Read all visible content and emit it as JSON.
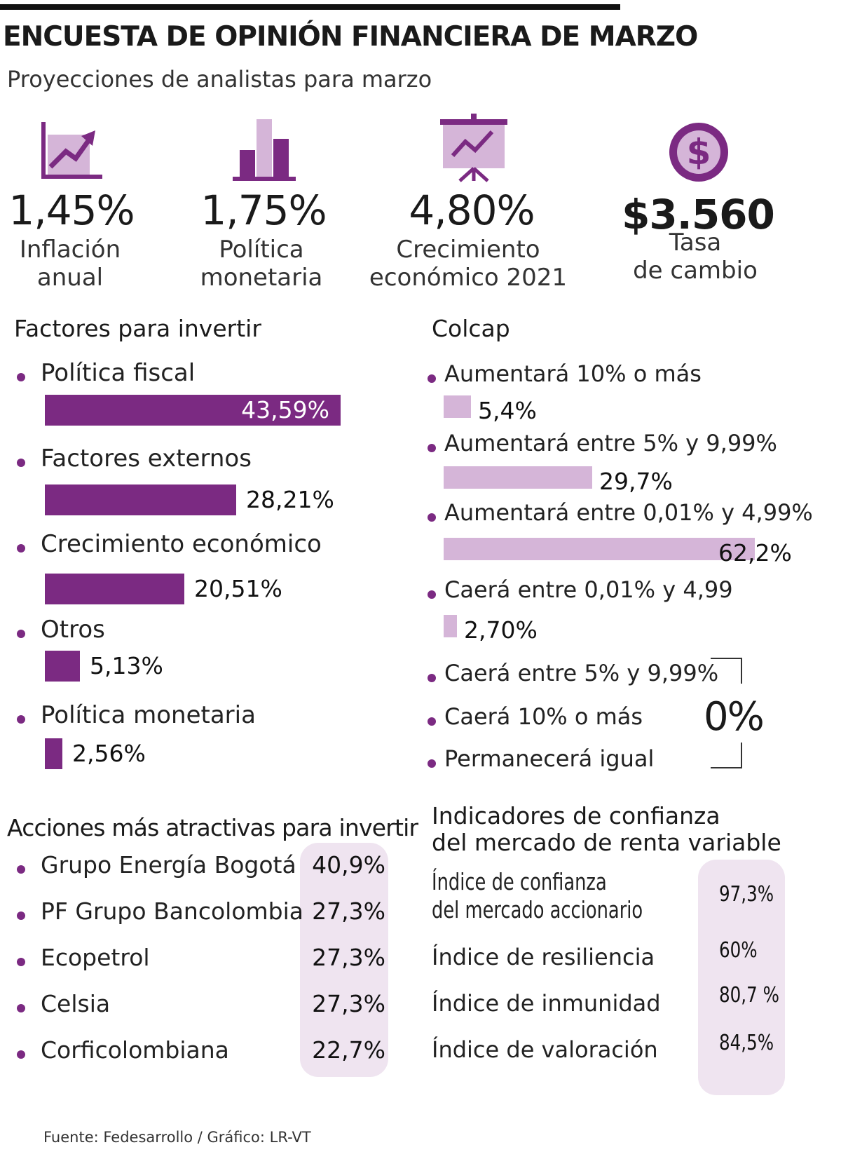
{
  "title": "ENCUESTA DE OPINIÓN FINANCIERA DE MARZO",
  "subtitle": "Proyecciones de analistas para marzo",
  "kpis": [
    {
      "value": "1,45%",
      "label1": "Inflación",
      "label2": "anual",
      "icon": "chart-growth-icon"
    },
    {
      "value": "1,75%",
      "label1": "Política",
      "label2": "monetaria",
      "icon": "bar-chart-icon"
    },
    {
      "value": "4,80%",
      "label1": "Crecimiento",
      "label2": "económico 2021",
      "icon": "presentation-board-icon"
    },
    {
      "value": "$3.560",
      "label1": "Tasa",
      "label2": "de cambio",
      "icon": "dollar-coin-icon"
    }
  ],
  "colors": {
    "dark": "#7b2a82",
    "light": "#d5b5d8",
    "pill": "#efe4f0"
  },
  "chart_data": [
    {
      "type": "bar",
      "title": "Factores para invertir",
      "categories": [
        "Política fiscal",
        "Factores externos",
        "Crecimiento económico",
        "Otros",
        "Política monetaria"
      ],
      "values": [
        43.59,
        28.21,
        20.51,
        5.13,
        2.56
      ],
      "labels": [
        "43,59%",
        "28,21%",
        "20,51%",
        "5,13%",
        "2,56%"
      ],
      "ylim": [
        0,
        43.59
      ]
    },
    {
      "type": "bar",
      "title": "Colcap",
      "categories": [
        "Aumentará 10% o más",
        "Aumentará entre 5% y 9,99%",
        "Aumentará entre 0,01% y 4,99%",
        "Caerá entre 0,01% y 4,99"
      ],
      "values": [
        5.4,
        29.7,
        62.2,
        2.7
      ],
      "labels": [
        "5,4%",
        "29,7%",
        "62,2%",
        "2,70%"
      ],
      "zero_categories": [
        "Caerá entre 5% y 9,99%",
        "Caerá 10% o más",
        "Permanecerá igual"
      ],
      "zero_label": "0%",
      "ylim": [
        0,
        62.2
      ]
    },
    {
      "type": "table",
      "title": "Acciones más atractivas para invertir",
      "categories": [
        "Grupo Energía Bogotá",
        "PF Grupo Bancolombia",
        "Ecopetrol",
        "Celsia",
        "Corficolombiana"
      ],
      "labels": [
        "40,9%",
        "27,3%",
        "27,3%",
        "27,3%",
        "22,7%"
      ],
      "values": [
        40.9,
        27.3,
        27.3,
        27.3,
        22.7
      ]
    },
    {
      "type": "table",
      "title1": "Indicadores de confianza",
      "title2": "del mercado de renta variable",
      "categories": [
        "Índice de confianza del mercado accionario",
        "Índice de resiliencia",
        "Índice de inmunidad",
        "Índice de valoración"
      ],
      "cat0_line1": "Índice de confianza",
      "cat0_line2": "del mercado accionario",
      "labels": [
        "97,3%",
        "60%",
        "80,7 %",
        "84,5%"
      ],
      "values": [
        97.3,
        60,
        80.7,
        84.5
      ]
    }
  ],
  "footer": "Fuente: Fedesarrollo  / Gráfico: LR-VT"
}
